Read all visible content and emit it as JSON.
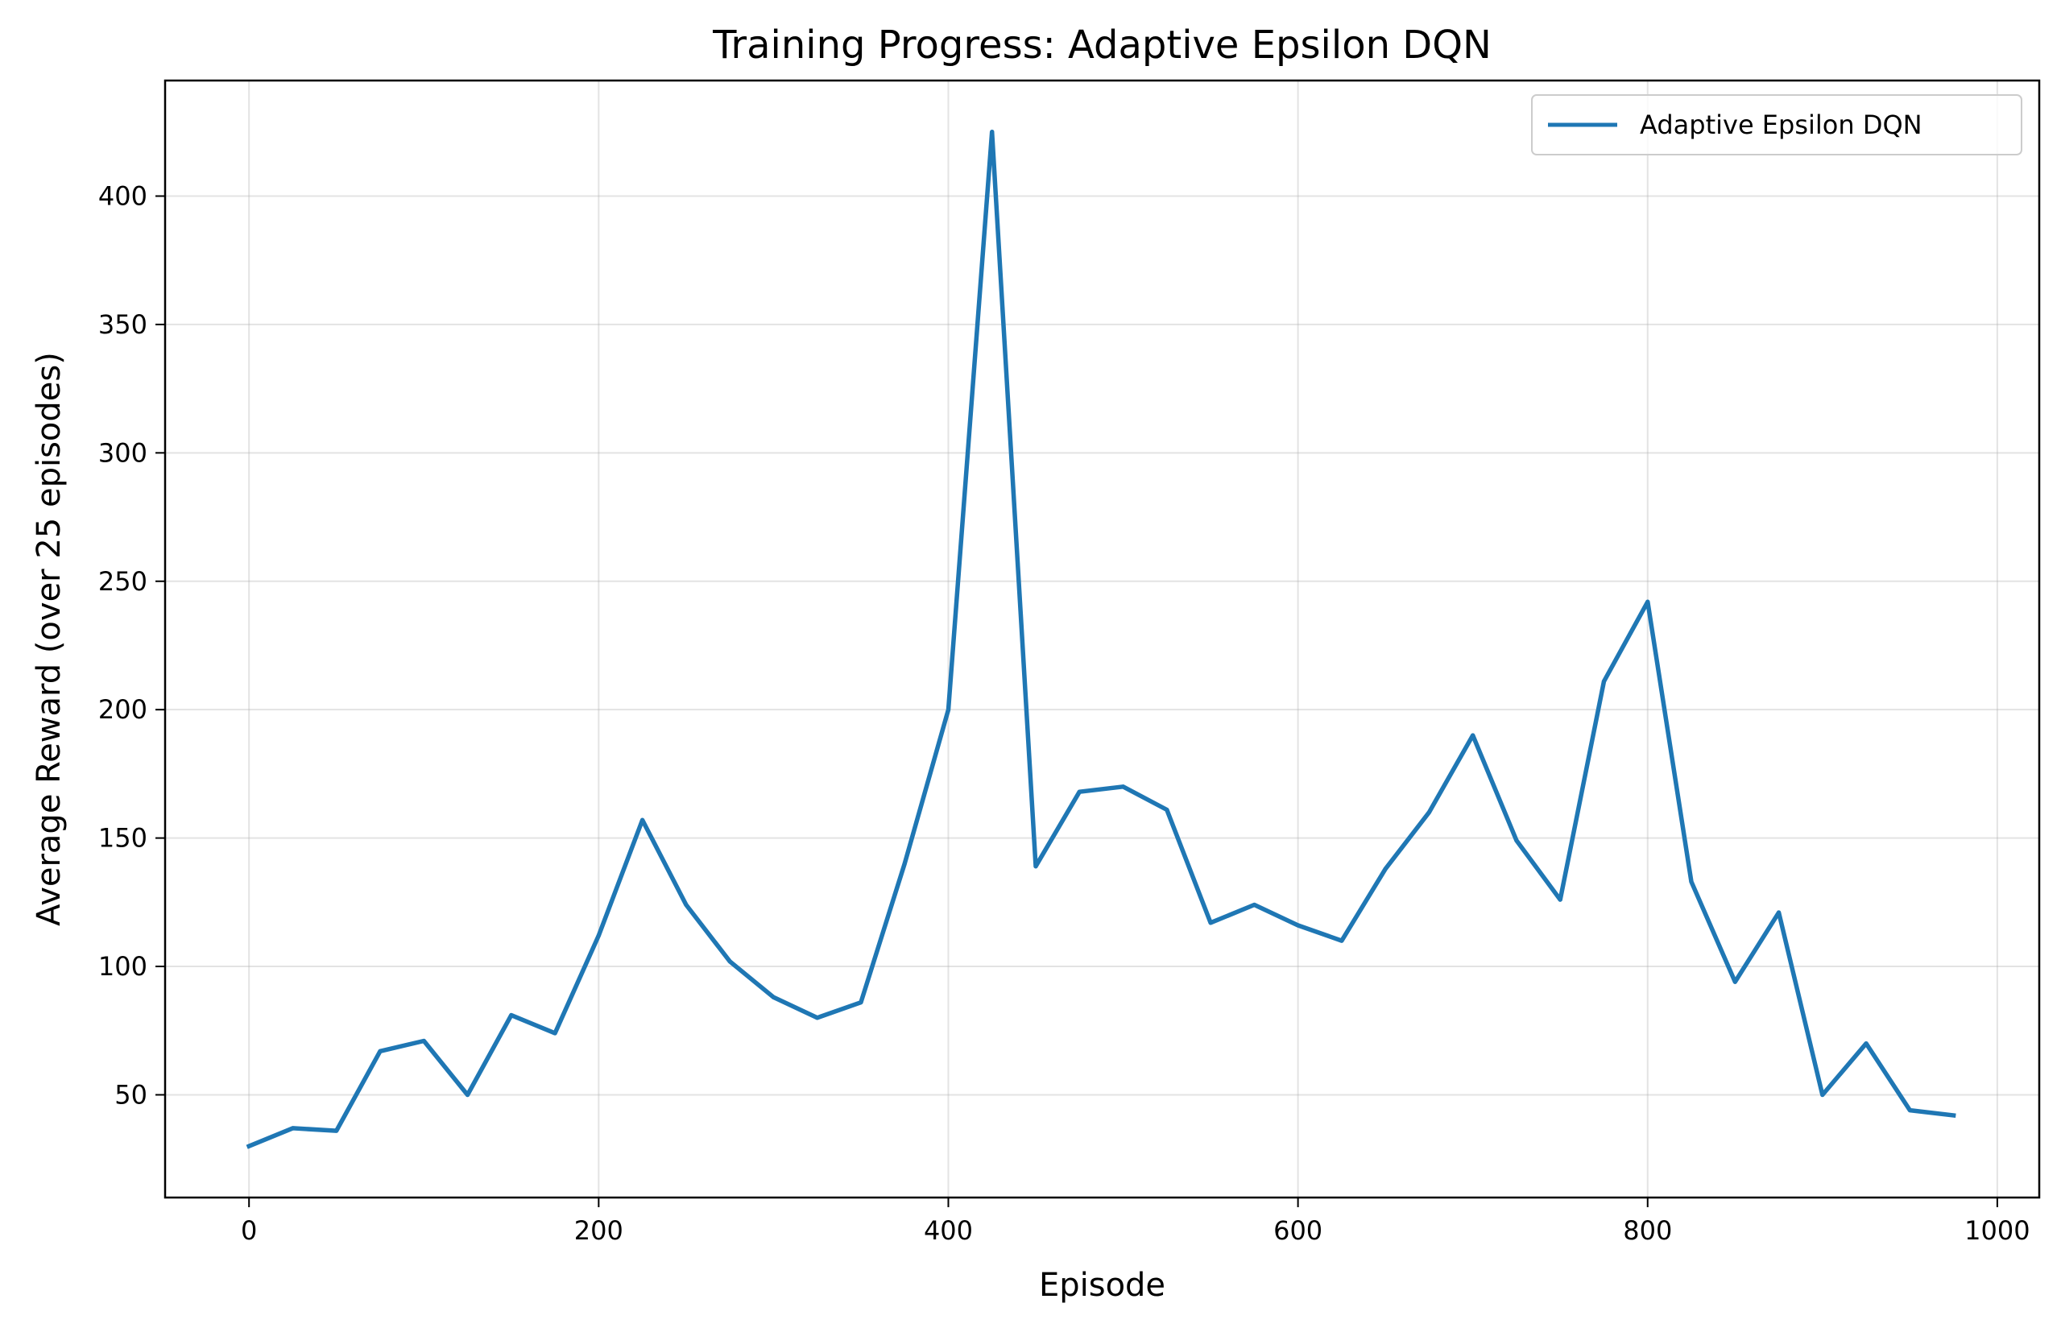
{
  "chart_data": {
    "type": "line",
    "title": "Training Progress: Adaptive Epsilon DQN",
    "xlabel": "Episode",
    "ylabel": "Average Reward (over 25 episodes)",
    "xlim": [
      -48,
      1024
    ],
    "ylim": [
      10,
      445
    ],
    "xticks": [
      0,
      200,
      400,
      600,
      800,
      1000
    ],
    "yticks": [
      50,
      100,
      150,
      200,
      250,
      300,
      350,
      400
    ],
    "xtick_labels": [
      "0",
      "200",
      "400",
      "600",
      "800",
      "1000"
    ],
    "ytick_labels": [
      "50",
      "100",
      "150",
      "200",
      "250",
      "300",
      "350",
      "400"
    ],
    "grid": true,
    "legend_position": "top-right",
    "series": [
      {
        "name": "Adaptive Epsilon DQN",
        "color": "#1f77b4",
        "x": [
          0,
          25,
          50,
          75,
          100,
          125,
          150,
          175,
          200,
          225,
          250,
          275,
          300,
          325,
          350,
          375,
          400,
          425,
          450,
          475,
          500,
          525,
          550,
          575,
          600,
          625,
          650,
          675,
          700,
          725,
          750,
          775,
          800,
          825,
          850,
          875,
          900,
          925,
          950,
          975
        ],
        "y": [
          30,
          37,
          36,
          67,
          71,
          50,
          81,
          74,
          112,
          157,
          124,
          102,
          88,
          80,
          86,
          140,
          200,
          425,
          139,
          168,
          170,
          161,
          117,
          124,
          116,
          110,
          138,
          160,
          190,
          149,
          126,
          211,
          242,
          133,
          94,
          121,
          50,
          70,
          44,
          42
        ]
      }
    ]
  }
}
